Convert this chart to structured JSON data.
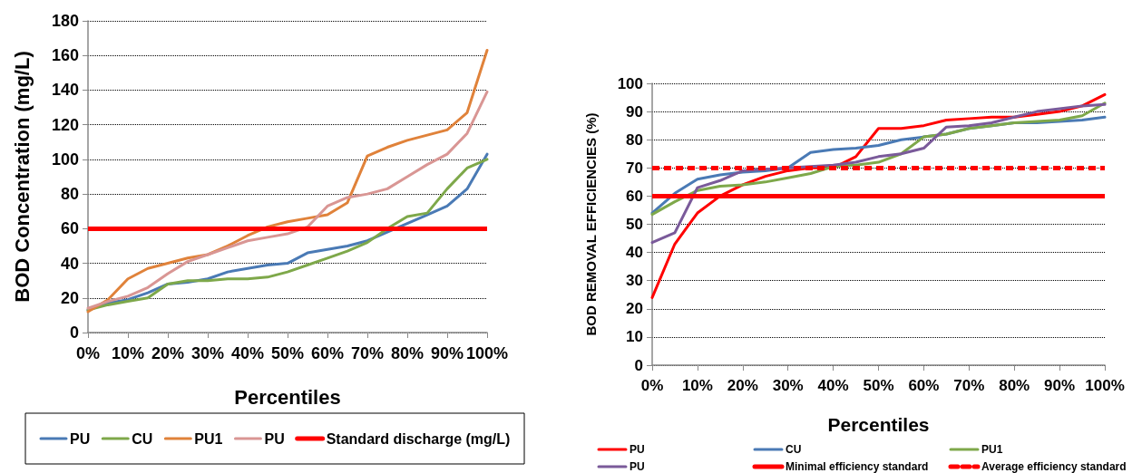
{
  "chart_data": [
    {
      "type": "line",
      "xlabel": "Percentiles",
      "ylabel": "BOD Concentration (mg/L)",
      "x": [
        0,
        5,
        10,
        15,
        20,
        25,
        30,
        35,
        40,
        45,
        50,
        55,
        60,
        65,
        70,
        75,
        80,
        85,
        90,
        95,
        100
      ],
      "xlim": [
        0,
        100
      ],
      "xticks": [
        {
          "value": 0,
          "label": "0%"
        },
        {
          "value": 10,
          "label": "10%"
        },
        {
          "value": 20,
          "label": "20%"
        },
        {
          "value": 30,
          "label": "30%"
        },
        {
          "value": 40,
          "label": "40%"
        },
        {
          "value": 50,
          "label": "50%"
        },
        {
          "value": 60,
          "label": "60%"
        },
        {
          "value": 70,
          "label": "70%"
        },
        {
          "value": 80,
          "label": "80%"
        },
        {
          "value": 90,
          "label": "90%"
        },
        {
          "value": 100,
          "label": "100%"
        }
      ],
      "ylim": [
        0,
        180
      ],
      "yticks": [
        0,
        20,
        40,
        60,
        80,
        100,
        120,
        140,
        160,
        180
      ],
      "grid": "y",
      "legend": "bottom",
      "marker": "none",
      "line_style": "solid",
      "series": [
        {
          "name": "PU",
          "color": "#4a7ab5",
          "values": [
            13,
            17,
            19,
            23,
            28,
            29,
            31,
            35,
            37,
            39,
            40,
            46,
            48,
            50,
            53,
            58,
            63,
            68,
            73,
            83,
            103
          ]
        },
        {
          "name": "CU",
          "color": "#7ea84a",
          "values": [
            13,
            16,
            18,
            20,
            28,
            30,
            30,
            31,
            31,
            32,
            35,
            39,
            43,
            47,
            52,
            60,
            67,
            69,
            83,
            95,
            100
          ]
        },
        {
          "name": "PU1",
          "color": "#e0823a",
          "values": [
            12,
            19,
            31,
            37,
            40,
            43,
            45,
            50,
            56,
            61,
            64,
            66,
            68,
            75,
            102,
            107,
            111,
            114,
            117,
            127,
            163
          ]
        },
        {
          "name": "PU",
          "color": "#d99694",
          "values": [
            14,
            18,
            21,
            26,
            34,
            41,
            45,
            49,
            53,
            55,
            57,
            61,
            73,
            78,
            80,
            83,
            90,
            97,
            103,
            115,
            139
          ]
        }
      ],
      "ref_lines": [
        {
          "axis": "y",
          "value": 60,
          "label": "Standard discharge (mg/L)",
          "color": "#ff0000",
          "line_style": "solid"
        }
      ]
    },
    {
      "type": "line",
      "xlabel": "Percentiles",
      "ylabel": "BOD REMOVAL EFFICIENCIES (%)",
      "x": [
        0,
        5,
        10,
        15,
        20,
        25,
        30,
        35,
        40,
        45,
        50,
        55,
        60,
        65,
        70,
        75,
        80,
        85,
        90,
        95,
        100
      ],
      "xlim": [
        0,
        100
      ],
      "xticks": [
        {
          "value": 0,
          "label": "0%"
        },
        {
          "value": 10,
          "label": "10%"
        },
        {
          "value": 20,
          "label": "20%"
        },
        {
          "value": 30,
          "label": "30%"
        },
        {
          "value": 40,
          "label": "40%"
        },
        {
          "value": 50,
          "label": "50%"
        },
        {
          "value": 60,
          "label": "60%"
        },
        {
          "value": 70,
          "label": "70%"
        },
        {
          "value": 80,
          "label": "80%"
        },
        {
          "value": 90,
          "label": "90%"
        },
        {
          "value": 100,
          "label": "100%"
        }
      ],
      "ylim": [
        0,
        100
      ],
      "yticks": [
        0,
        10,
        20,
        30,
        40,
        50,
        60,
        70,
        80,
        90,
        100
      ],
      "grid": "y",
      "legend": "bottom",
      "marker": "none",
      "line_style": "solid",
      "series": [
        {
          "name": "PU",
          "color": "#ff0000",
          "values": [
            24,
            43,
            54,
            60,
            64,
            67,
            69,
            70,
            70,
            74,
            84,
            84,
            85,
            87,
            87.5,
            88,
            88,
            89,
            90,
            92,
            96
          ]
        },
        {
          "name": "CU",
          "color": "#4a7ab5",
          "values": [
            54,
            61,
            66,
            67.5,
            68.5,
            69,
            70,
            75.5,
            76.5,
            77,
            78,
            80,
            81,
            82,
            84,
            85,
            86,
            86,
            86.5,
            87,
            88
          ]
        },
        {
          "name": "PU1",
          "color": "#7ea84a",
          "values": [
            53.5,
            58,
            62,
            63.5,
            64,
            65,
            66.5,
            68,
            70.5,
            71,
            72,
            75,
            81,
            82,
            84,
            85,
            86,
            86.5,
            87,
            88.5,
            93
          ]
        },
        {
          "name": "PU",
          "color": "#7a5a9a",
          "values": [
            43.5,
            47,
            63,
            65.5,
            69,
            69.5,
            70,
            70.5,
            71,
            72,
            74,
            75,
            77,
            84.5,
            85,
            86,
            88,
            90,
            91,
            92,
            92.5
          ]
        }
      ],
      "ref_lines": [
        {
          "axis": "y",
          "value": 60,
          "label": "Minimal efficiency standard",
          "color": "#ff0000",
          "line_style": "solid"
        },
        {
          "axis": "y",
          "value": 70,
          "label": "Average efficiency standard",
          "color": "#ff0000",
          "line_style": "dashed"
        }
      ]
    }
  ]
}
